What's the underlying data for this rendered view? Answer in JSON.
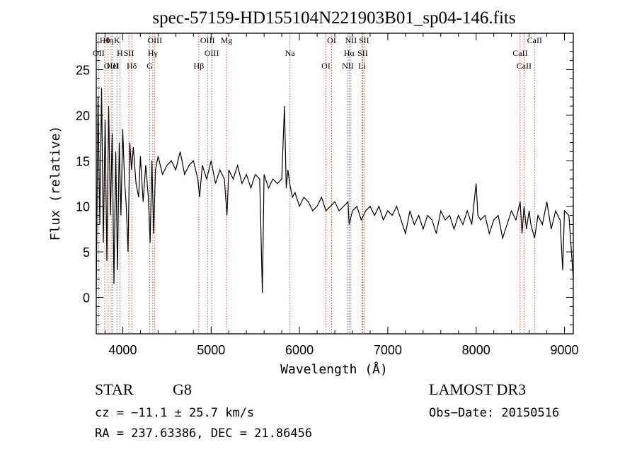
{
  "chart_data": {
    "type": "line",
    "title": "spec-57159-HD155104N221903B01_sp04-146.fits",
    "xlabel": "Wavelength (Å)",
    "ylabel": "Flux (relative)",
    "xlim": [
      3700,
      9100
    ],
    "ylim": [
      -4,
      29
    ],
    "xticks": [
      4000,
      5000,
      6000,
      7000,
      8000,
      9000
    ],
    "yticks": [
      0,
      5,
      10,
      15,
      20,
      25
    ],
    "series": [
      {
        "name": "flux",
        "x": [
          3700,
          3720,
          3740,
          3760,
          3780,
          3800,
          3820,
          3840,
          3860,
          3880,
          3900,
          3920,
          3940,
          3960,
          3980,
          4000,
          4020,
          4040,
          4060,
          4080,
          4100,
          4120,
          4150,
          4180,
          4200,
          4230,
          4260,
          4290,
          4310,
          4330,
          4350,
          4370,
          4400,
          4450,
          4500,
          4550,
          4600,
          4650,
          4700,
          4750,
          4800,
          4850,
          4870,
          4900,
          4950,
          5000,
          5050,
          5100,
          5150,
          5180,
          5200,
          5250,
          5300,
          5350,
          5400,
          5450,
          5500,
          5550,
          5580,
          5600,
          5650,
          5700,
          5750,
          5800,
          5830,
          5850,
          5870,
          5890,
          5920,
          5950,
          6000,
          6050,
          6100,
          6150,
          6200,
          6250,
          6300,
          6350,
          6400,
          6450,
          6500,
          6550,
          6563,
          6600,
          6650,
          6700,
          6750,
          6800,
          6850,
          6900,
          6950,
          7000,
          7050,
          7100,
          7150,
          7200,
          7250,
          7300,
          7350,
          7400,
          7450,
          7500,
          7550,
          7600,
          7650,
          7700,
          7750,
          7800,
          7850,
          7900,
          7950,
          8000,
          8020,
          8050,
          8100,
          8150,
          8200,
          8250,
          8300,
          8350,
          8400,
          8450,
          8498,
          8520,
          8542,
          8570,
          8600,
          8620,
          8662,
          8700,
          8750,
          8800,
          8850,
          8900,
          8950,
          8980,
          9000,
          9050,
          9100
        ],
        "values": [
          0.5,
          22.0,
          8.0,
          23.0,
          6.0,
          19.5,
          4.0,
          21.0,
          9.0,
          18.0,
          1.5,
          16.0,
          3.0,
          17.0,
          9.0,
          18.5,
          13.0,
          10.0,
          5.0,
          17.0,
          14.0,
          16.5,
          12.5,
          11.0,
          15.5,
          10.5,
          14.5,
          11.0,
          6.0,
          15.0,
          7.0,
          14.0,
          15.5,
          13.5,
          14.5,
          15.0,
          14.0,
          16.0,
          13.5,
          14.5,
          15.0,
          13.0,
          11.0,
          14.5,
          13.0,
          15.0,
          12.5,
          14.0,
          13.0,
          9.0,
          14.0,
          13.0,
          14.5,
          12.5,
          13.5,
          12.0,
          13.5,
          13.0,
          0.5,
          13.5,
          12.0,
          13.0,
          12.5,
          13.0,
          21.0,
          12.0,
          14.0,
          12.5,
          11.0,
          11.5,
          10.0,
          11.0,
          10.5,
          9.5,
          10.0,
          11.0,
          9.5,
          10.0,
          10.5,
          9.5,
          10.0,
          10.5,
          8.0,
          9.5,
          10.0,
          8.5,
          9.5,
          10.0,
          9.0,
          10.0,
          8.5,
          9.5,
          9.0,
          10.0,
          8.5,
          7.0,
          9.5,
          8.0,
          9.0,
          7.5,
          9.0,
          8.5,
          7.0,
          9.5,
          8.5,
          9.0,
          7.5,
          9.0,
          8.0,
          9.5,
          8.0,
          12.5,
          9.0,
          8.5,
          9.0,
          7.0,
          8.5,
          9.0,
          6.5,
          8.0,
          9.5,
          8.5,
          10.5,
          7.0,
          10.0,
          7.5,
          9.5,
          8.0,
          6.5,
          9.0,
          8.0,
          10.5,
          7.5,
          9.5,
          8.5,
          3.0,
          9.5,
          9.0,
          2.0
        ]
      }
    ],
    "annotations": [
      {
        "label": "Hθ",
        "x": 3797
      },
      {
        "label": "OII",
        "x": 3727
      },
      {
        "label": "OIII",
        "x": 3869
      },
      {
        "label": "K",
        "x": 3934
      },
      {
        "label": "H",
        "x": 3968
      },
      {
        "label": "HeI",
        "x": 3889
      },
      {
        "label": "Hη",
        "x": 3835
      },
      {
        "label": "SII",
        "x": 4069
      },
      {
        "label": "Hδ",
        "x": 4102
      },
      {
        "label": "OIII",
        "x": 4363
      },
      {
        "label": "Hγ",
        "x": 4340
      },
      {
        "label": "G",
        "x": 4305
      },
      {
        "label": "OIII",
        "x": 4959
      },
      {
        "label": "OIII",
        "x": 5007
      },
      {
        "label": "Hβ",
        "x": 4861
      },
      {
        "label": "Mg",
        "x": 5175
      },
      {
        "label": "Na",
        "x": 5893
      },
      {
        "label": "OI",
        "x": 6300
      },
      {
        "label": "OI",
        "x": 6364
      },
      {
        "label": "Hα",
        "x": 6563
      },
      {
        "label": "NII",
        "x": 6548
      },
      {
        "label": "NII",
        "x": 6583
      },
      {
        "label": "SII",
        "x": 6716
      },
      {
        "label": "Li",
        "x": 6708
      },
      {
        "label": "SII",
        "x": 6731
      },
      {
        "label": "CaII",
        "x": 8498
      },
      {
        "label": "CaII",
        "x": 8542
      },
      {
        "label": "CaII",
        "x": 8662
      }
    ]
  },
  "info": {
    "object_class": "STAR",
    "subclass": "G8",
    "survey": "LAMOST DR3",
    "redshift": "cz = −11.1 ± 25.7 km/s",
    "obs_date": "Obs−Date: 20150516",
    "coords": "RA = 237.63386, DEC =  21.86456"
  },
  "colors": {
    "line": "#000000",
    "marker": "#c0392b",
    "axis": "#000000"
  }
}
